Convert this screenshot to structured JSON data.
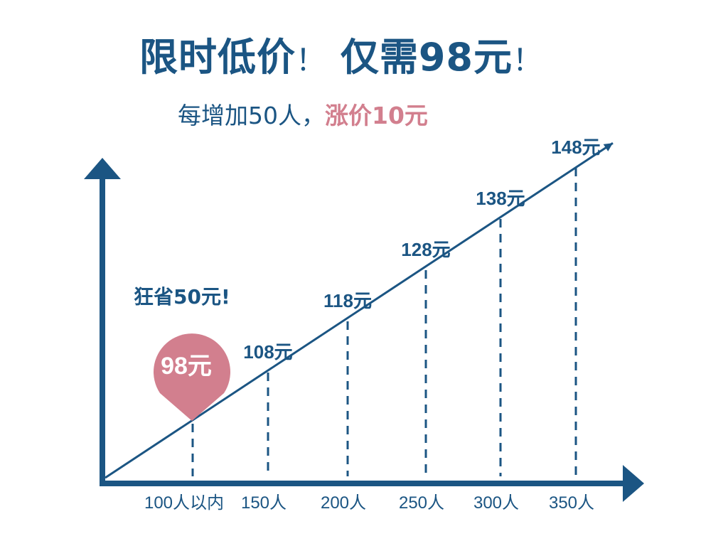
{
  "header": {
    "title_part1": "限时低价",
    "title_sep1": "！",
    "title_part2": "仅需98元",
    "title_sep2": "！",
    "subtitle_main": "每增加50人，",
    "subtitle_highlight": "涨价10元"
  },
  "annotation": {
    "savings": "狂省50元!",
    "pin_label": "98元"
  },
  "colors": {
    "primary": "#1b5583",
    "accent": "#d27f8e"
  },
  "chart_data": {
    "type": "line",
    "categories": [
      "100人以内",
      "150人",
      "200人",
      "250人",
      "300人",
      "350人"
    ],
    "series": [
      {
        "values": [
          98,
          108,
          118,
          128,
          138,
          148
        ]
      }
    ],
    "data_labels": [
      "98元",
      "108元",
      "118元",
      "128元",
      "138元",
      "148元"
    ],
    "xlabel": "",
    "ylabel": "",
    "grid": false
  }
}
